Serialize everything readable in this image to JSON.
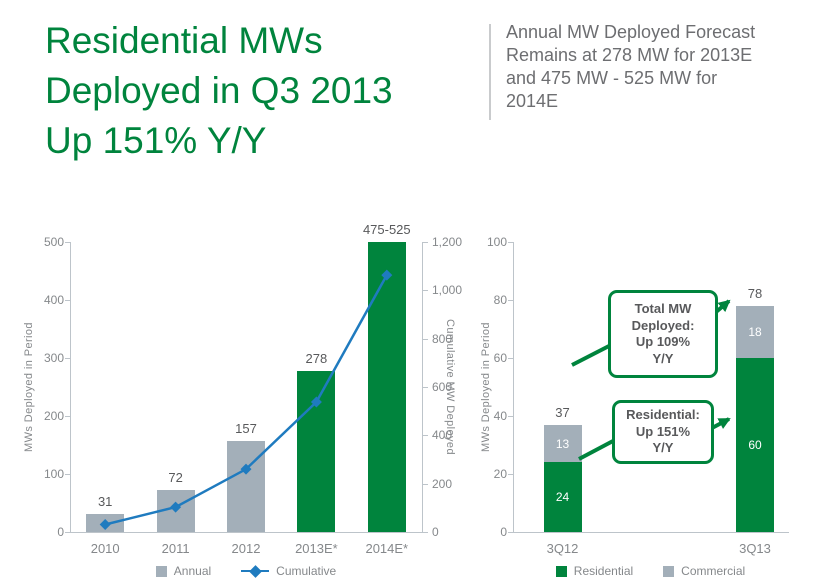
{
  "header": {
    "title_lines": [
      "Residential MWs",
      "Deployed in Q3 2013",
      "Up 151% Y/Y"
    ],
    "forecast_lines": [
      "Annual MW Deployed Forecast",
      "Remains at 278 MW for 2013E",
      "and 475 MW - 525 MW for",
      "2014E"
    ]
  },
  "colors": {
    "green": "#00843d",
    "gray_bar": "#a3afb9",
    "blue_line": "#1f7bbf",
    "dark_text": "#58595b",
    "axis_text": "#85888b",
    "divider": "#c9cbcd"
  },
  "chart_data": [
    {
      "type": "combo-bar-line",
      "categories": [
        "2010",
        "2011",
        "2012",
        "2013E*",
        "2014E*"
      ],
      "series": [
        {
          "name": "Annual",
          "kind": "bar",
          "axis": "left",
          "values": [
            31,
            72,
            157,
            278,
            500
          ],
          "value_labels": [
            "31",
            "72",
            "157",
            "278",
            "475-525"
          ],
          "bar_colors": [
            "gray",
            "gray",
            "gray",
            "green",
            "green"
          ]
        },
        {
          "name": "Cumulative",
          "kind": "line",
          "axis": "right",
          "values": [
            31,
            103,
            260,
            538,
            1063
          ]
        }
      ],
      "ylabel_left": "MWs Deployed in Period",
      "ylabel_right": "Cumulative MW Deployed",
      "ylim_left": [
        0,
        500
      ],
      "ylim_right": [
        0,
        1200
      ],
      "yticks_left": [
        "500",
        "400",
        "300",
        "200",
        "100",
        "0"
      ],
      "yticks_right": [
        "1,200",
        "1,000",
        "800",
        "600",
        "400",
        "200",
        "0"
      ],
      "legend": [
        "Annual",
        "Cumulative"
      ],
      "legend_position": "bottom",
      "grid": false
    },
    {
      "type": "stacked-bar",
      "categories": [
        "3Q12",
        "3Q13"
      ],
      "series": [
        {
          "name": "Residential",
          "values": [
            24,
            60
          ],
          "color": "green"
        },
        {
          "name": "Commercial",
          "values": [
            13,
            18
          ],
          "color": "gray"
        }
      ],
      "totals": [
        "37",
        "78"
      ],
      "ylabel": "MWs Deployed in Period",
      "ylim": [
        0,
        100
      ],
      "yticks": [
        "100",
        "80",
        "60",
        "40",
        "20",
        "0"
      ],
      "legend": [
        "Residential",
        "Commercial"
      ],
      "legend_position": "bottom",
      "grid": false,
      "callouts": [
        {
          "lines": [
            "Total MW",
            "Deployed:",
            "Up 109%",
            "Y/Y"
          ]
        },
        {
          "lines": [
            "Residential:",
            "Up 151%",
            "Y/Y"
          ]
        }
      ]
    }
  ]
}
